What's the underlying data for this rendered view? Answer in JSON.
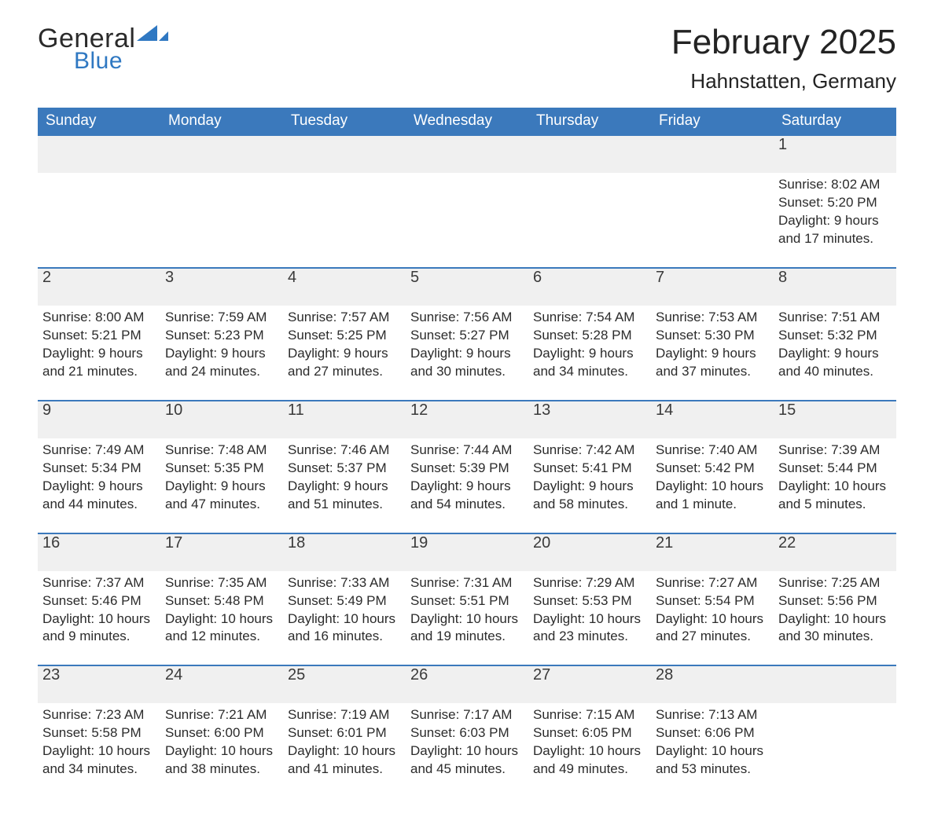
{
  "logo": {
    "word1": "General",
    "word2": "Blue"
  },
  "colors": {
    "header_bg": "#3b79bc",
    "header_text": "#ffffff",
    "daynum_bg": "#f0f0f0",
    "daynum_border": "#3b79bc",
    "body_text": "#2b2b2b",
    "logo_blue": "#2f78c2",
    "background": "#ffffff"
  },
  "typography": {
    "title_fontsize": 44,
    "location_fontsize": 26,
    "weekday_fontsize": 19,
    "daynum_fontsize": 20,
    "detail_fontsize": 17
  },
  "title": "February 2025",
  "location": "Hahnstatten, Germany",
  "weekdays": [
    "Sunday",
    "Monday",
    "Tuesday",
    "Wednesday",
    "Thursday",
    "Friday",
    "Saturday"
  ],
  "weeks": [
    [
      null,
      null,
      null,
      null,
      null,
      null,
      {
        "n": "1",
        "sunrise": "Sunrise: 8:02 AM",
        "sunset": "Sunset: 5:20 PM",
        "day1": "Daylight: 9 hours",
        "day2": "and 17 minutes."
      }
    ],
    [
      {
        "n": "2",
        "sunrise": "Sunrise: 8:00 AM",
        "sunset": "Sunset: 5:21 PM",
        "day1": "Daylight: 9 hours",
        "day2": "and 21 minutes."
      },
      {
        "n": "3",
        "sunrise": "Sunrise: 7:59 AM",
        "sunset": "Sunset: 5:23 PM",
        "day1": "Daylight: 9 hours",
        "day2": "and 24 minutes."
      },
      {
        "n": "4",
        "sunrise": "Sunrise: 7:57 AM",
        "sunset": "Sunset: 5:25 PM",
        "day1": "Daylight: 9 hours",
        "day2": "and 27 minutes."
      },
      {
        "n": "5",
        "sunrise": "Sunrise: 7:56 AM",
        "sunset": "Sunset: 5:27 PM",
        "day1": "Daylight: 9 hours",
        "day2": "and 30 minutes."
      },
      {
        "n": "6",
        "sunrise": "Sunrise: 7:54 AM",
        "sunset": "Sunset: 5:28 PM",
        "day1": "Daylight: 9 hours",
        "day2": "and 34 minutes."
      },
      {
        "n": "7",
        "sunrise": "Sunrise: 7:53 AM",
        "sunset": "Sunset: 5:30 PM",
        "day1": "Daylight: 9 hours",
        "day2": "and 37 minutes."
      },
      {
        "n": "8",
        "sunrise": "Sunrise: 7:51 AM",
        "sunset": "Sunset: 5:32 PM",
        "day1": "Daylight: 9 hours",
        "day2": "and 40 minutes."
      }
    ],
    [
      {
        "n": "9",
        "sunrise": "Sunrise: 7:49 AM",
        "sunset": "Sunset: 5:34 PM",
        "day1": "Daylight: 9 hours",
        "day2": "and 44 minutes."
      },
      {
        "n": "10",
        "sunrise": "Sunrise: 7:48 AM",
        "sunset": "Sunset: 5:35 PM",
        "day1": "Daylight: 9 hours",
        "day2": "and 47 minutes."
      },
      {
        "n": "11",
        "sunrise": "Sunrise: 7:46 AM",
        "sunset": "Sunset: 5:37 PM",
        "day1": "Daylight: 9 hours",
        "day2": "and 51 minutes."
      },
      {
        "n": "12",
        "sunrise": "Sunrise: 7:44 AM",
        "sunset": "Sunset: 5:39 PM",
        "day1": "Daylight: 9 hours",
        "day2": "and 54 minutes."
      },
      {
        "n": "13",
        "sunrise": "Sunrise: 7:42 AM",
        "sunset": "Sunset: 5:41 PM",
        "day1": "Daylight: 9 hours",
        "day2": "and 58 minutes."
      },
      {
        "n": "14",
        "sunrise": "Sunrise: 7:40 AM",
        "sunset": "Sunset: 5:42 PM",
        "day1": "Daylight: 10 hours",
        "day2": "and 1 minute."
      },
      {
        "n": "15",
        "sunrise": "Sunrise: 7:39 AM",
        "sunset": "Sunset: 5:44 PM",
        "day1": "Daylight: 10 hours",
        "day2": "and 5 minutes."
      }
    ],
    [
      {
        "n": "16",
        "sunrise": "Sunrise: 7:37 AM",
        "sunset": "Sunset: 5:46 PM",
        "day1": "Daylight: 10 hours",
        "day2": "and 9 minutes."
      },
      {
        "n": "17",
        "sunrise": "Sunrise: 7:35 AM",
        "sunset": "Sunset: 5:48 PM",
        "day1": "Daylight: 10 hours",
        "day2": "and 12 minutes."
      },
      {
        "n": "18",
        "sunrise": "Sunrise: 7:33 AM",
        "sunset": "Sunset: 5:49 PM",
        "day1": "Daylight: 10 hours",
        "day2": "and 16 minutes."
      },
      {
        "n": "19",
        "sunrise": "Sunrise: 7:31 AM",
        "sunset": "Sunset: 5:51 PM",
        "day1": "Daylight: 10 hours",
        "day2": "and 19 minutes."
      },
      {
        "n": "20",
        "sunrise": "Sunrise: 7:29 AM",
        "sunset": "Sunset: 5:53 PM",
        "day1": "Daylight: 10 hours",
        "day2": "and 23 minutes."
      },
      {
        "n": "21",
        "sunrise": "Sunrise: 7:27 AM",
        "sunset": "Sunset: 5:54 PM",
        "day1": "Daylight: 10 hours",
        "day2": "and 27 minutes."
      },
      {
        "n": "22",
        "sunrise": "Sunrise: 7:25 AM",
        "sunset": "Sunset: 5:56 PM",
        "day1": "Daylight: 10 hours",
        "day2": "and 30 minutes."
      }
    ],
    [
      {
        "n": "23",
        "sunrise": "Sunrise: 7:23 AM",
        "sunset": "Sunset: 5:58 PM",
        "day1": "Daylight: 10 hours",
        "day2": "and 34 minutes."
      },
      {
        "n": "24",
        "sunrise": "Sunrise: 7:21 AM",
        "sunset": "Sunset: 6:00 PM",
        "day1": "Daylight: 10 hours",
        "day2": "and 38 minutes."
      },
      {
        "n": "25",
        "sunrise": "Sunrise: 7:19 AM",
        "sunset": "Sunset: 6:01 PM",
        "day1": "Daylight: 10 hours",
        "day2": "and 41 minutes."
      },
      {
        "n": "26",
        "sunrise": "Sunrise: 7:17 AM",
        "sunset": "Sunset: 6:03 PM",
        "day1": "Daylight: 10 hours",
        "day2": "and 45 minutes."
      },
      {
        "n": "27",
        "sunrise": "Sunrise: 7:15 AM",
        "sunset": "Sunset: 6:05 PM",
        "day1": "Daylight: 10 hours",
        "day2": "and 49 minutes."
      },
      {
        "n": "28",
        "sunrise": "Sunrise: 7:13 AM",
        "sunset": "Sunset: 6:06 PM",
        "day1": "Daylight: 10 hours",
        "day2": "and 53 minutes."
      },
      null
    ]
  ]
}
